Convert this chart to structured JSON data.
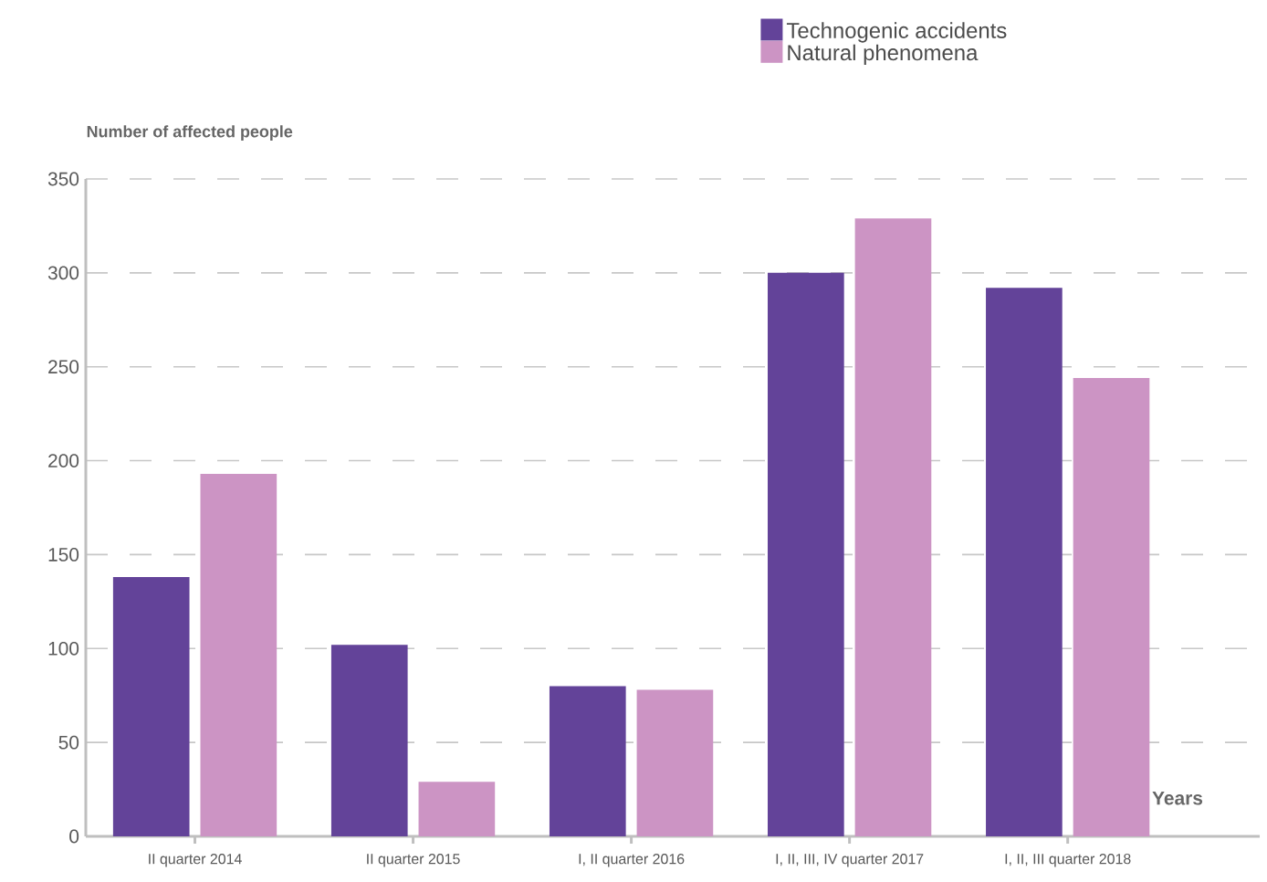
{
  "chart_data": {
    "type": "bar",
    "ylabel": "Number of affected people",
    "xlabel": "Years",
    "categories": [
      "II quarter 2014",
      "II quarter 2015",
      "I, II quarter 2016",
      "I, II, III, IV quarter 2017",
      "I, II, III quarter 2018"
    ],
    "series": [
      {
        "name": "Technogenic accidents",
        "color": "#634399",
        "values": [
          138,
          102,
          80,
          300,
          292
        ]
      },
      {
        "name": "Natural phenomena",
        "color": "#cc94c4",
        "values": [
          193,
          29,
          78,
          329,
          244
        ]
      }
    ],
    "ylim": [
      0,
      350
    ],
    "yticks": [
      0,
      50,
      100,
      150,
      200,
      250,
      300,
      350
    ],
    "grid": "y",
    "legend": "top right"
  }
}
